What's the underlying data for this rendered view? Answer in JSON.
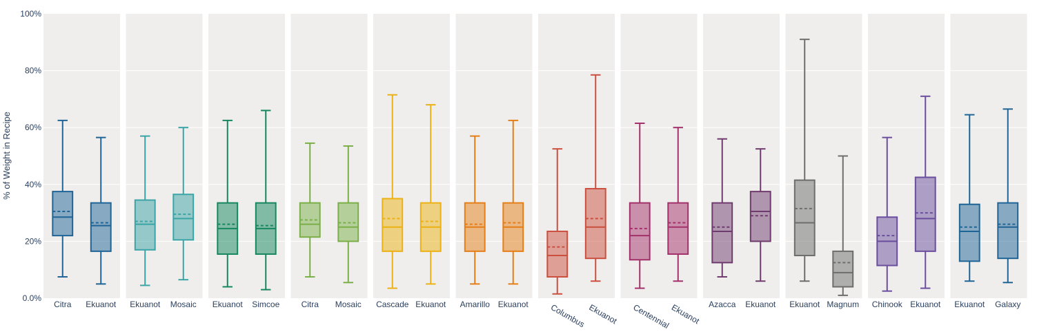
{
  "chart_data": {
    "type": "box",
    "ylabel": "% of Weight in Recipe",
    "xlabel": "",
    "ylim": [
      0,
      100
    ],
    "yticks": [
      0,
      20,
      40,
      60,
      80,
      100
    ],
    "ytick_labels": [
      "0.0%",
      "20%",
      "40%",
      "60%",
      "80%",
      "100%"
    ],
    "grid": true,
    "panel_background": "#efeeec",
    "grid_color": "#ffffff",
    "axis_text_color": "#2a3f5f",
    "panels": [
      {
        "color": "#1f6496",
        "boxes": [
          {
            "label": "Citra",
            "min": 7.5,
            "q1": 22.0,
            "median": 28.5,
            "mean": 30.5,
            "q3": 37.5,
            "max": 62.5
          },
          {
            "label": "Ekuanot",
            "min": 5.0,
            "q1": 16.5,
            "median": 25.5,
            "mean": 26.5,
            "q3": 33.5,
            "max": 56.5
          }
        ]
      },
      {
        "color": "#3ba4a6",
        "boxes": [
          {
            "label": "Ekuanot",
            "min": 4.5,
            "q1": 17.0,
            "median": 26.0,
            "mean": 27.0,
            "q3": 34.5,
            "max": 57.0
          },
          {
            "label": "Mosaic",
            "min": 6.5,
            "q1": 20.5,
            "median": 28.0,
            "mean": 29.5,
            "q3": 36.5,
            "max": 60.0
          }
        ]
      },
      {
        "color": "#16875d",
        "boxes": [
          {
            "label": "Ekuanot",
            "min": 4.0,
            "q1": 15.5,
            "median": 24.5,
            "mean": 26.0,
            "q3": 33.5,
            "max": 62.5
          },
          {
            "label": "Simcoe",
            "min": 3.0,
            "q1": 15.5,
            "median": 24.5,
            "mean": 25.5,
            "q3": 33.5,
            "max": 66.0
          }
        ]
      },
      {
        "color": "#7aaf48",
        "boxes": [
          {
            "label": "Citra",
            "min": 7.5,
            "q1": 21.5,
            "median": 26.0,
            "mean": 27.5,
            "q3": 33.5,
            "max": 54.5
          },
          {
            "label": "Mosaic",
            "min": 5.5,
            "q1": 20.0,
            "median": 25.0,
            "mean": 26.5,
            "q3": 33.5,
            "max": 53.5
          }
        ]
      },
      {
        "color": "#ecb113",
        "boxes": [
          {
            "label": "Cascade",
            "min": 3.5,
            "q1": 16.5,
            "median": 25.0,
            "mean": 28.0,
            "q3": 35.0,
            "max": 71.5
          },
          {
            "label": "Ekuanot",
            "min": 5.0,
            "q1": 16.5,
            "median": 25.0,
            "mean": 27.0,
            "q3": 33.5,
            "max": 68.0
          }
        ]
      },
      {
        "color": "#e57e17",
        "boxes": [
          {
            "label": "Amarillo",
            "min": 5.0,
            "q1": 16.5,
            "median": 25.0,
            "mean": 26.0,
            "q3": 33.5,
            "max": 57.0
          },
          {
            "label": "Ekuanot",
            "min": 5.0,
            "q1": 16.5,
            "median": 25.0,
            "mean": 26.5,
            "q3": 33.5,
            "max": 62.5
          }
        ]
      },
      {
        "color": "#cb4f3f",
        "rotated_labels": true,
        "boxes": [
          {
            "label": "Columbus",
            "min": 1.5,
            "q1": 7.5,
            "median": 15.0,
            "mean": 18.0,
            "q3": 23.5,
            "max": 52.5
          },
          {
            "label": "Ekuanot",
            "min": 6.0,
            "q1": 14.0,
            "median": 25.0,
            "mean": 28.0,
            "q3": 38.5,
            "max": 78.5
          }
        ]
      },
      {
        "color": "#a3306a",
        "rotated_labels": true,
        "boxes": [
          {
            "label": "Centennial",
            "min": 3.5,
            "q1": 13.5,
            "median": 22.0,
            "mean": 24.5,
            "q3": 33.5,
            "max": 61.5
          },
          {
            "label": "Ekuanot",
            "min": 6.0,
            "q1": 15.5,
            "median": 25.0,
            "mean": 26.5,
            "q3": 33.5,
            "max": 60.0
          }
        ]
      },
      {
        "color": "#6f3b6e",
        "boxes": [
          {
            "label": "Azacca",
            "min": 7.5,
            "q1": 12.5,
            "median": 23.5,
            "mean": 25.0,
            "q3": 33.5,
            "max": 56.0
          },
          {
            "label": "Ekuanot",
            "min": 6.0,
            "q1": 20.0,
            "median": 30.5,
            "mean": 29.0,
            "q3": 37.5,
            "max": 52.5
          }
        ]
      },
      {
        "color": "#6d6d6d",
        "boxes": [
          {
            "label": "Ekuanot",
            "min": 6.0,
            "q1": 15.0,
            "median": 26.5,
            "mean": 31.5,
            "q3": 41.5,
            "max": 91.0
          },
          {
            "label": "Magnum",
            "min": 1.0,
            "q1": 4.0,
            "median": 9.0,
            "mean": 12.5,
            "q3": 16.5,
            "max": 50.0
          }
        ]
      },
      {
        "color": "#6a4d9c",
        "boxes": [
          {
            "label": "Chinook",
            "min": 2.5,
            "q1": 11.5,
            "median": 20.0,
            "mean": 22.0,
            "q3": 28.5,
            "max": 56.5
          },
          {
            "label": "Ekuanot",
            "min": 3.5,
            "q1": 16.5,
            "median": 28.0,
            "mean": 30.0,
            "q3": 42.5,
            "max": 71.0
          }
        ]
      },
      {
        "color": "#1f6496",
        "boxes": [
          {
            "label": "Ekuanot",
            "min": 6.0,
            "q1": 13.0,
            "median": 23.5,
            "mean": 25.0,
            "q3": 33.0,
            "max": 64.5
          },
          {
            "label": "Galaxy",
            "min": 5.5,
            "q1": 14.0,
            "median": 25.0,
            "mean": 26.0,
            "q3": 33.5,
            "max": 66.5
          }
        ]
      }
    ]
  }
}
